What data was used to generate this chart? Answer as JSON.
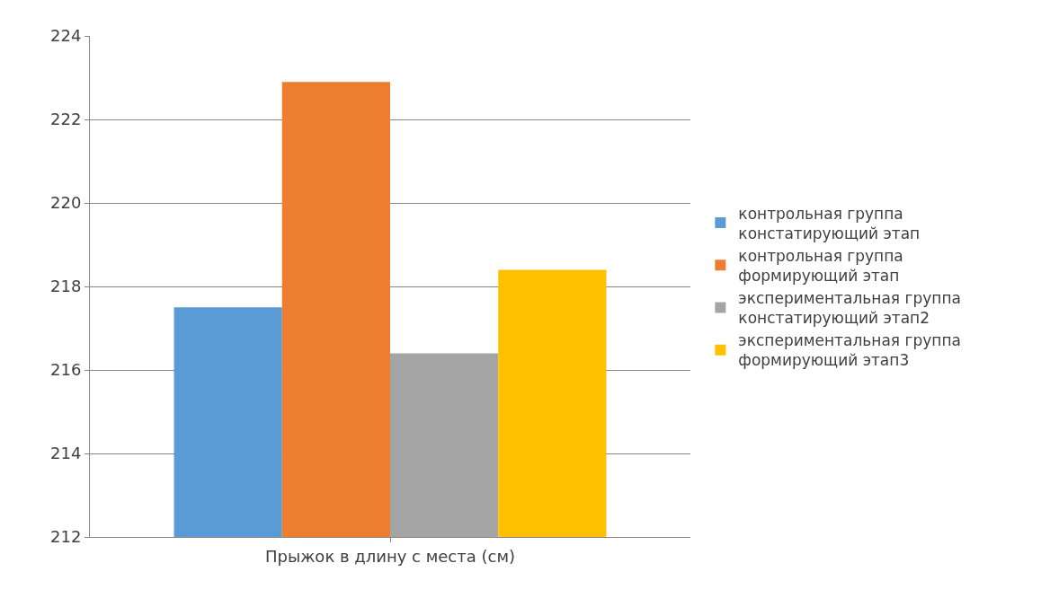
{
  "chart_data": {
    "type": "bar",
    "categories": [
      "Прыжок в длину с места (см)"
    ],
    "series": [
      {
        "name": "контрольная группа констатирующий этап",
        "color": "#5b9bd5",
        "values": [
          217.5
        ]
      },
      {
        "name": "контрольная группа формирующий этап",
        "color": "#ed7d31",
        "values": [
          222.9
        ]
      },
      {
        "name": "экспериментальная группа констатирующий этап2",
        "color": "#a5a5a5",
        "values": [
          216.4
        ]
      },
      {
        "name": "экспериментальная группа формирующий этап3",
        "color": "#ffc000",
        "values": [
          218.4
        ]
      }
    ],
    "ylim": [
      212,
      224
    ],
    "yticks": [
      212,
      214,
      216,
      218,
      220,
      222,
      224
    ],
    "grid": "y",
    "legend": "right"
  }
}
